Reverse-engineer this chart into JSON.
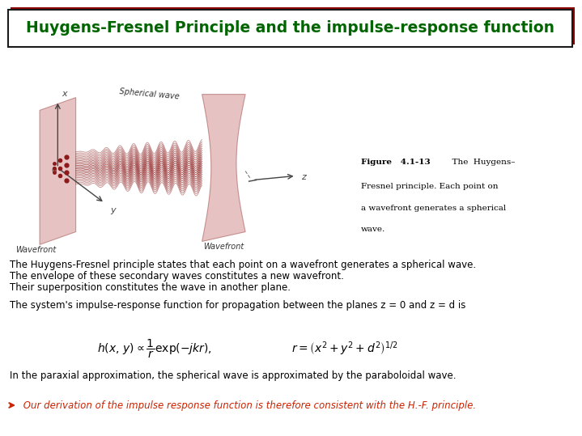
{
  "title": "Huygens-Fresnel Principle and the impulse-response function",
  "title_color": "#006400",
  "title_bg": "#ffffff",
  "title_border_color": "#1a1a1a",
  "title_shadow_color": "#8B0000",
  "body_bg": "#ffffff",
  "text1_line1": "The Huygens-Fresnel principle states that each point on a wavefront generates a spherical wave.",
  "text1_line2": "The envelope of these secondary waves constitutes a new wavefront.",
  "text1_line3": "Their superposition constitutes the wave in another plane.",
  "text2": "The system's impulse-response function for propagation between the planes z = 0 and z = d is",
  "text3": "In the paraxial approximation, the spherical wave is approximated by the paraboloidal wave.",
  "text4": " Our derivation of the impulse response function is therefore consistent with the H.-F. principle.",
  "text_color": "#000000",
  "last_line_color": "#cc2200",
  "font_size_title": 13.5,
  "font_size_body": 8.5,
  "plane_face_color": "#d4908080",
  "wave_color": "#8B1a1a",
  "axis_color": "#444444"
}
